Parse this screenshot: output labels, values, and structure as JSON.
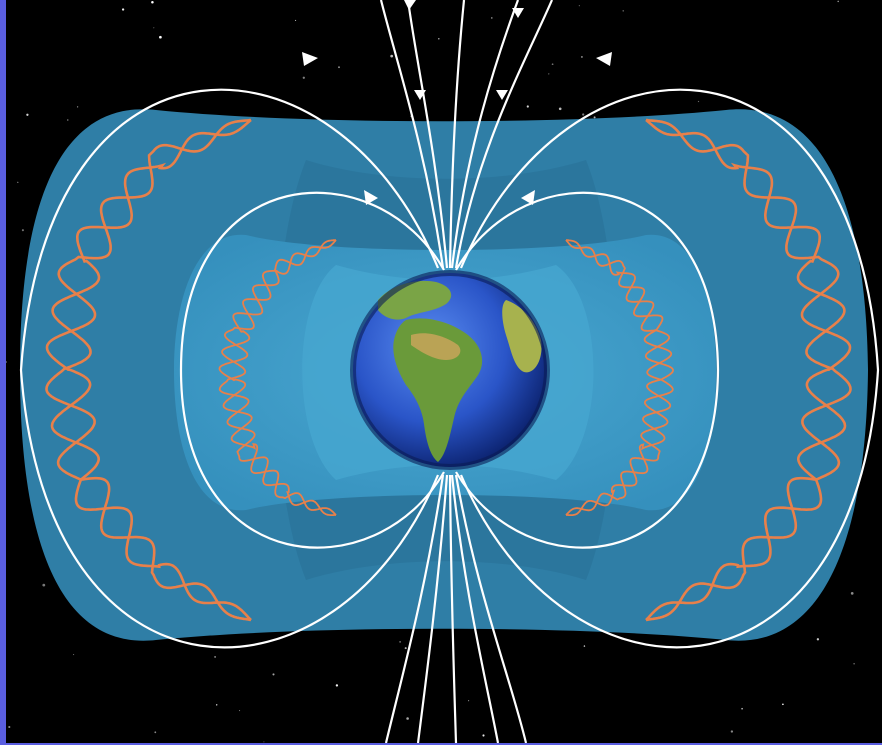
{
  "figure": {
    "subject": "earth-magnetosphere-radiation-belts",
    "colors": {
      "border": "#5a5ee0",
      "space": "#000000",
      "outer_belt": "#2f7ea6",
      "inner_belt": "#3f9dc6",
      "field_lines": "#ffffff",
      "particle_paths": "#e8804a",
      "ocean": "#2a5bd4",
      "land": "#6a9a3a"
    },
    "icons": [
      "earth-globe-icon",
      "field-direction-arrow-icon",
      "star-icon"
    ]
  }
}
